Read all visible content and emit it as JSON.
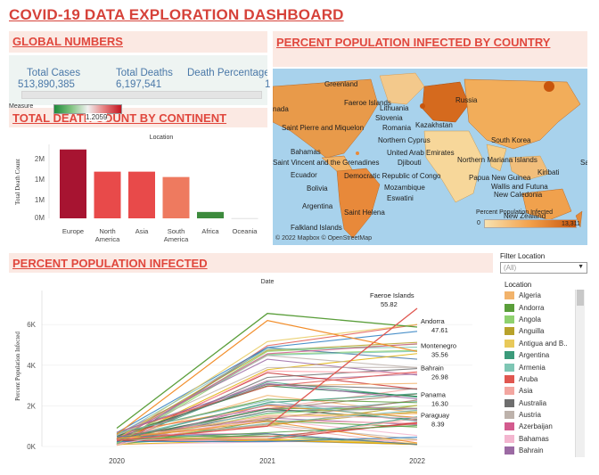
{
  "dashboard": {
    "title": "COVID-19 DATA EXPLORATION DASHBOARD"
  },
  "sections": {
    "global": "GLOBAL NUMBERS",
    "map": "PERCENT POPULATION INFECTED BY COUNTRY",
    "deaths": "TOTAL DEATH COUNT BY CONTINENT",
    "infected": "PERCENT POPULATION INFECTED"
  },
  "global_numbers": {
    "headers": [
      "Total Cases",
      "Total Deaths",
      "Death Percentage"
    ],
    "values": [
      "513,890,385",
      "6,197,541",
      "1"
    ]
  },
  "measure_legend": {
    "label": "Measure",
    "value": "1.2059"
  },
  "map": {
    "labels": [
      "Greenland",
      "Faeroe Islands",
      "Russia",
      "Canada",
      "Lithuania",
      "Slovenia",
      "Kazakhstan",
      "Saint Pierre and Miquelon",
      "Romania",
      "Northern Cyprus",
      "South Korea",
      "Bahamas",
      "United Arab Emirates",
      "Saint Vincent and the Grenadines",
      "Djibouti",
      "Northern Mariana Islands",
      "Ecuador",
      "Democratic Republic of Congo",
      "Papua New Guinea",
      "Kiribati",
      "Bolivia",
      "Mozambique",
      "Wallis and Futuna",
      "Eswatini",
      "New Caledonia",
      "Argentina",
      "Saint Helena",
      "New Zealand",
      "Falkland Islands",
      "Sa",
      "nada"
    ],
    "legend_title": "Percent Population Infected",
    "legend_min": "0",
    "legend_max": "13,311",
    "copyright": "© 2022 Mapbox  © OpenStreetMap",
    "colors": {
      "ocean": "#a8d2ec",
      "low": "#f8e2b0",
      "high": "#c8550c"
    }
  },
  "filter": {
    "label": "Filter Location",
    "value": "(All)"
  },
  "location_legend": {
    "title": "Location",
    "items": [
      {
        "name": "Algeria",
        "color": "#f2b36b"
      },
      {
        "name": "Andorra",
        "color": "#5a9e3a"
      },
      {
        "name": "Angola",
        "color": "#8fd16f"
      },
      {
        "name": "Anguilla",
        "color": "#b8a22b"
      },
      {
        "name": "Antigua and B..",
        "color": "#e8c95a"
      },
      {
        "name": "Argentina",
        "color": "#3b9a7a"
      },
      {
        "name": "Armenia",
        "color": "#7ec6b4"
      },
      {
        "name": "Aruba",
        "color": "#e05750"
      },
      {
        "name": "Asia",
        "color": "#f3a6a0"
      },
      {
        "name": "Australia",
        "color": "#6e6e6e"
      },
      {
        "name": "Austria",
        "color": "#bdb2ab"
      },
      {
        "name": "Azerbaijan",
        "color": "#d35b8e"
      },
      {
        "name": "Bahamas",
        "color": "#f3b6cf"
      },
      {
        "name": "Bahrain",
        "color": "#9b6aa3"
      }
    ]
  },
  "chart_data": [
    {
      "type": "bar",
      "title": "Location",
      "ylabel": "Total Death Count",
      "categories": [
        "Europe",
        "North America",
        "Asia",
        "South America",
        "Africa",
        "Oceania"
      ],
      "values": [
        2700000,
        1830000,
        1830000,
        1620000,
        250000,
        10000
      ],
      "colors": [
        "#a71431",
        "#e84a4a",
        "#e84a4a",
        "#ee7a5f",
        "#3d8b3d",
        "#e0e0e0"
      ],
      "yticks": [
        "2M",
        "1M",
        "1M",
        "0M"
      ],
      "ylim": [
        0,
        2900000
      ]
    },
    {
      "type": "line",
      "title": "Date",
      "ylabel": "Percent Population Infected",
      "x": [
        "2020",
        "2021",
        "2022"
      ],
      "yticks": [
        "6K",
        "4K",
        "2K",
        "0K"
      ],
      "ylim": [
        0,
        6800
      ],
      "annotations": [
        {
          "name": "Faeroe Islands",
          "value": "55.82",
          "y": 6800
        },
        {
          "name": "Andorra",
          "value": "47.61",
          "y": 5880
        },
        {
          "name": "Montenegro",
          "value": "35.56",
          "y": 4680
        },
        {
          "name": "Bahrain",
          "value": "26.98",
          "y": 3580
        },
        {
          "name": "Panama",
          "value": "16.30",
          "y": 2250
        },
        {
          "name": "Paraguay",
          "value": "8.39",
          "y": 1250
        }
      ]
    }
  ]
}
